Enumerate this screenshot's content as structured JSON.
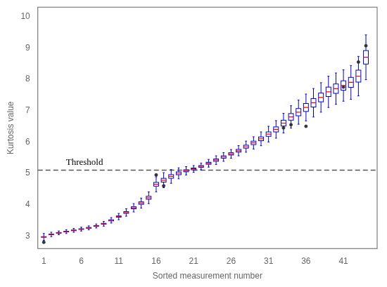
{
  "chart_data": {
    "type": "boxplot",
    "xlabel": "Sorted measurement number",
    "ylabel": "Kurtosis value",
    "x": [
      1,
      2,
      3,
      4,
      5,
      6,
      7,
      8,
      9,
      10,
      11,
      12,
      13,
      14,
      15,
      16,
      17,
      18,
      19,
      20,
      21,
      22,
      23,
      24,
      25,
      26,
      27,
      28,
      29,
      30,
      31,
      32,
      33,
      34,
      35,
      36,
      37,
      38,
      39,
      40,
      41,
      42,
      43,
      44
    ],
    "medians": [
      2.97,
      3.05,
      3.1,
      3.14,
      3.18,
      3.22,
      3.26,
      3.32,
      3.39,
      3.5,
      3.62,
      3.75,
      3.9,
      4.05,
      4.22,
      4.65,
      4.78,
      4.9,
      5.0,
      5.08,
      5.14,
      5.22,
      5.32,
      5.42,
      5.52,
      5.62,
      5.72,
      5.85,
      5.97,
      6.1,
      6.25,
      6.4,
      6.6,
      6.8,
      6.95,
      7.1,
      7.25,
      7.42,
      7.6,
      7.7,
      7.8,
      7.9,
      8.1,
      8.7
    ],
    "q1": [
      2.96,
      3.04,
      3.09,
      3.129,
      3.169,
      3.209,
      3.2475,
      3.3075,
      3.375,
      3.4825,
      3.6,
      3.7225,
      3.8675,
      4.01,
      4.1725,
      4.59,
      4.72,
      4.8425,
      4.955,
      5.0475,
      5.1125,
      5.1925,
      5.2875,
      5.3825,
      5.4825,
      5.5825,
      5.6775,
      5.8025,
      5.915,
      6.04,
      6.18,
      6.32,
      6.5075,
      6.695,
      6.835,
      6.9725,
      7.115,
      7.28,
      7.45,
      7.55,
      7.65,
      7.74,
      7.91,
      8.485
    ],
    "q3": [
      2.98,
      3.06,
      3.11,
      3.151,
      3.191,
      3.231,
      3.2725,
      3.3325,
      3.405,
      3.5175,
      3.64,
      3.7775,
      3.9325,
      4.09,
      4.2675,
      4.71,
      4.84,
      4.9575,
      5.045,
      5.1125,
      5.1675,
      5.2475,
      5.3525,
      5.4575,
      5.5575,
      5.6575,
      5.7625,
      5.8975,
      6.025,
      6.16,
      6.32,
      6.48,
      6.6925,
      6.905,
      7.065,
      7.2275,
      7.385,
      7.56,
      7.75,
      7.85,
      7.95,
      8.06,
      8.29,
      8.915
    ],
    "whisker_low": [
      2.86,
      2.98,
      3.04,
      3.079,
      3.119,
      3.159,
      3.1975,
      3.2575,
      3.315,
      3.4125,
      3.52,
      3.6325,
      3.7675,
      3.89,
      4.0325,
      4.41,
      4.54,
      4.6825,
      4.825,
      4.9475,
      5.0325,
      5.1125,
      5.1975,
      5.2825,
      5.3825,
      5.4825,
      5.5575,
      5.6725,
      5.775,
      5.88,
      6.0,
      6.12,
      6.2875,
      6.445,
      6.565,
      6.6725,
      6.795,
      6.95,
      7.1,
      7.2,
      7.3,
      7.36,
      7.47,
      7.985
    ],
    "whisker_high": [
      3.08,
      3.12,
      3.16,
      3.201,
      3.241,
      3.281,
      3.3225,
      3.3825,
      3.465,
      3.5875,
      3.72,
      3.8675,
      4.0325,
      4.21,
      4.4075,
      4.89,
      5.02,
      5.1175,
      5.175,
      5.2125,
      5.2475,
      5.3275,
      5.4425,
      5.5575,
      5.6575,
      5.7575,
      5.8825,
      6.0275,
      6.165,
      6.32,
      6.5,
      6.68,
      6.9125,
      7.155,
      7.335,
      7.5275,
      7.705,
      7.89,
      8.1,
      8.2,
      8.3,
      8.44,
      8.73,
      9.415
    ],
    "color": "#0000CC",
    "median_color": "#FF0000",
    "outliers": {
      "x": [
        1,
        16,
        17,
        33,
        34,
        36,
        41,
        43,
        44
      ],
      "values": [
        2.8,
        4.95,
        4.6,
        6.45,
        6.55,
        6.5,
        7.75,
        8.55,
        9.07
      ],
      "color": "#333333"
    },
    "threshold": {
      "value": 5.1,
      "label": "Threshold",
      "color": "#555555",
      "line_style": "dashed"
    },
    "xlim": [
      0.2,
      45.5
    ],
    "xticks": [
      1,
      6,
      11,
      16,
      21,
      26,
      31,
      36,
      41
    ],
    "ylim": [
      2.6,
      10.3
    ],
    "yticks": [
      3,
      4,
      5,
      6,
      7,
      8,
      9,
      10
    ],
    "grid": false
  }
}
